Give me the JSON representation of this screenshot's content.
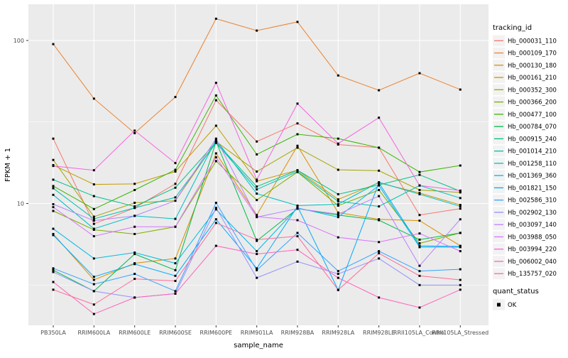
{
  "chart_data": {
    "type": "line",
    "title": "",
    "xlabel": "sample_name",
    "ylabel": "FPKM + 1",
    "yscale": "log10",
    "ylim": [
      1.78,
      167
    ],
    "yticks": [
      100,
      10
    ],
    "ytick_labels": [
      "100",
      "10"
    ],
    "yminor_breaks": [
      31.62,
      3.162
    ],
    "grid": "on",
    "panel_bg": "#EBEBEB",
    "grid_color": "#FFFFFF",
    "marker": "black-square",
    "marker_color": "#000000",
    "legend_title": "tracking_id",
    "legend_key_bg": "#F2F2F2",
    "legend2_title": "quant_status",
    "legend2_items": [
      {
        "label": "OK",
        "marker": "black-square"
      }
    ],
    "categories": [
      "PB350LA",
      "RRIM600LA",
      "RRIM600LE",
      "RRIM600SE",
      "RRIM600PE",
      "RRIM901LA",
      "RRIM928BA",
      "RRIM928LA",
      "RRIM928LE",
      "RRII105LA_Control",
      "RRII105LA_Stressed"
    ],
    "series": [
      {
        "name": "Hb_000031_110",
        "color": "#F8766D",
        "values": [
          25,
          7.5,
          9.4,
          13.2,
          43,
          24,
          31,
          23,
          22,
          8.5,
          9.3
        ]
      },
      {
        "name": "Hb_000109_170",
        "color": "#EA8331",
        "values": [
          95,
          44,
          27,
          45,
          136,
          115,
          130,
          61,
          49.5,
          63,
          50
        ]
      },
      {
        "name": "Hb_000130_180",
        "color": "#D89000",
        "values": [
          6.5,
          3.4,
          4.3,
          4.6,
          20.3,
          8.5,
          22.6,
          8.8,
          8.0,
          7.85,
          5.5
        ]
      },
      {
        "name": "Hb_000161_210",
        "color": "#C09B00",
        "values": [
          17.2,
          13.1,
          13.2,
          15.7,
          30,
          13.7,
          16,
          10.6,
          13.4,
          11.6,
          9.8
        ]
      },
      {
        "name": "Hb_000352_300",
        "color": "#A3A500",
        "values": [
          18.5,
          8.3,
          10.1,
          10.4,
          24,
          15.7,
          22,
          16.1,
          15.9,
          12.1,
          11.7
        ]
      },
      {
        "name": "Hb_000366_200",
        "color": "#7CAE00",
        "values": [
          9.0,
          6.9,
          6.5,
          7.2,
          18.2,
          10.5,
          15.6,
          9.7,
          12.1,
          5.7,
          6.6
        ]
      },
      {
        "name": "Hb_000477_100",
        "color": "#39B600",
        "values": [
          12.8,
          9.25,
          12.1,
          16.1,
          46,
          20,
          26.6,
          25,
          22,
          15.6,
          17.1
        ]
      },
      {
        "name": "Hb_000784_070",
        "color": "#00BB4E",
        "values": [
          3.9,
          2.9,
          4.9,
          3.9,
          24,
          5.9,
          9.3,
          8.5,
          7.9,
          6.0,
          6.6
        ]
      },
      {
        "name": "Hb_000915_240",
        "color": "#00C087",
        "values": [
          14,
          11.1,
          9.6,
          12.5,
          23.8,
          12.7,
          16,
          11.4,
          13.0,
          15.0,
          11.9
        ]
      },
      {
        "name": "Hb_001014_210",
        "color": "#00C0AF",
        "values": [
          12.4,
          8.05,
          9.4,
          10.9,
          23.5,
          12.2,
          15.7,
          10.3,
          9.6,
          12.9,
          10.8
        ]
      },
      {
        "name": "Hb_001258_110",
        "color": "#00BFC4",
        "values": [
          11.3,
          7.0,
          8.4,
          8.05,
          24.6,
          11.5,
          9.7,
          9.9,
          13.5,
          11.4,
          9.6
        ]
      },
      {
        "name": "Hb_001369_360",
        "color": "#00BAE3",
        "values": [
          7.0,
          4.6,
          5.0,
          4.3,
          9.2,
          5.1,
          9.4,
          8.25,
          12.9,
          5.4,
          5.4
        ]
      },
      {
        "name": "Hb_001821_150",
        "color": "#00ACFC",
        "values": [
          6.4,
          3.55,
          4.25,
          3.6,
          8.0,
          4.0,
          9.6,
          2.95,
          13.4,
          5.5,
          5.45
        ]
      },
      {
        "name": "Hb_002586_310",
        "color": "#35A2FF",
        "values": [
          4.0,
          3.2,
          3.7,
          2.9,
          10.1,
          3.9,
          6.6,
          3.85,
          5.1,
          3.85,
          3.95
        ]
      },
      {
        "name": "Hb_002902_130",
        "color": "#9590FF",
        "values": [
          3.8,
          2.9,
          2.65,
          2.8,
          9.4,
          3.5,
          4.4,
          3.7,
          4.6,
          3.16,
          3.16
        ]
      },
      {
        "name": "Hb_003097_140",
        "color": "#BC81FF",
        "values": [
          9.9,
          7.85,
          8.4,
          10.4,
          25,
          8.25,
          9.3,
          8.6,
          11.1,
          4.15,
          8.0
        ]
      },
      {
        "name": "Hb_003988_050",
        "color": "#D874FD",
        "values": [
          9.5,
          6.3,
          7.2,
          7.2,
          19.2,
          8.3,
          7.9,
          6.2,
          5.8,
          6.55,
          5.1
        ]
      },
      {
        "name": "Hb_003994_220",
        "color": "#F564E3",
        "values": [
          17,
          16,
          28,
          17.7,
          55,
          14,
          41,
          23.3,
          33.6,
          12.9,
          12.0
        ]
      },
      {
        "name": "Hb_006002_040",
        "color": "#FF62BC",
        "values": [
          3.3,
          2.1,
          2.65,
          2.8,
          5.5,
          4.9,
          5.2,
          3.5,
          2.65,
          2.3,
          2.96
        ]
      },
      {
        "name": "Hb_135757_020",
        "color": "#FF6A98",
        "values": [
          2.96,
          2.4,
          3.45,
          3.35,
          7.6,
          6.0,
          6.3,
          2.95,
          4.95,
          3.6,
          3.4
        ]
      }
    ]
  }
}
